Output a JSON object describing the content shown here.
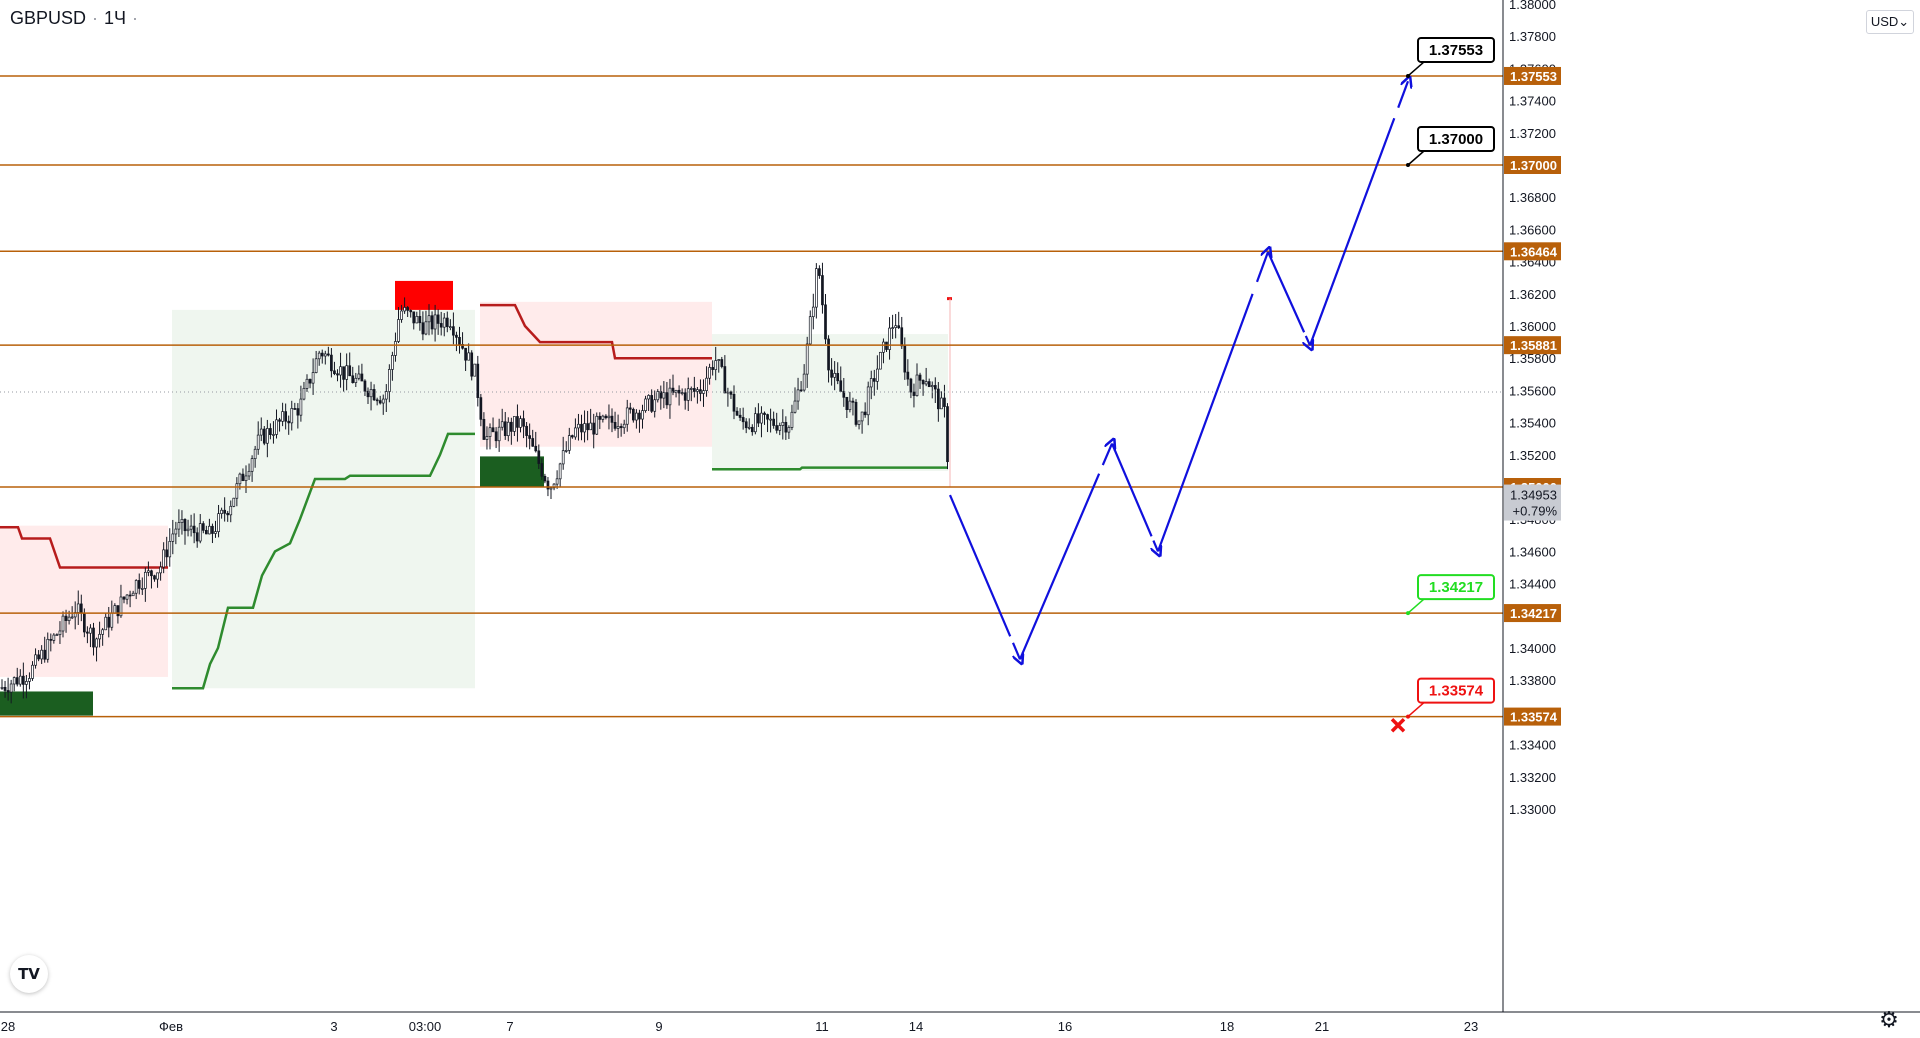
{
  "symbol": "GBPUSD",
  "timeframe": "1Ч",
  "currency": "USD",
  "currency_caret": "⌄",
  "logo_text": "TV",
  "settings_icon": "gear-icon",
  "colors": {
    "level_line": "#b8600a",
    "axis_level_bg": "#b8600a",
    "bull_candle": "#131722",
    "forecast_arrow": "#1010dd",
    "supertrend_up": "#2e8b2e",
    "supertrend_down": "#b71c1c",
    "zone_green": "#1b5e20",
    "zone_red": "#ff0000",
    "label_tp": "#000000",
    "label_green": "#22dd22",
    "label_red": "#ee1111",
    "current_price_bg": "#c8cbd2"
  },
  "chart_data": {
    "type": "candlestick",
    "symbol": "GBPUSD",
    "interval": "1H",
    "y_axis": {
      "range": [
        1.3295,
        1.3805
      ],
      "ticks": [
        "1.33000",
        "1.33200",
        "1.33400",
        "1.33600",
        "1.33800",
        "1.34000",
        "1.34200",
        "1.34400",
        "1.34600",
        "1.34800",
        "1.35000",
        "1.35200",
        "1.35400",
        "1.35600",
        "1.35800",
        "1.36000",
        "1.36200",
        "1.36400",
        "1.36600",
        "1.36800",
        "1.37000",
        "1.37200",
        "1.37400",
        "1.37600",
        "1.37800",
        "1.38000"
      ]
    },
    "x_axis_labels": [
      "28",
      "Фев",
      "3",
      "03:00",
      "7",
      "9",
      "11",
      "14",
      "16",
      "18",
      "21",
      "23"
    ],
    "levels": [
      {
        "price": 1.37553,
        "label": "1.37553"
      },
      {
        "price": 1.37,
        "label": "1.37000"
      },
      {
        "price": 1.36464,
        "label": "1.36464"
      },
      {
        "price": 1.35881,
        "label": "1.35881"
      },
      {
        "price": 1.35,
        "label": "1.35000"
      },
      {
        "price": 1.34217,
        "label": "1.34217"
      },
      {
        "price": 1.33574,
        "label": "1.33574"
      }
    ],
    "current_price": {
      "price": 1.34953,
      "label": "1.34953",
      "change": "+0.79%"
    },
    "targets": [
      {
        "price": 1.37553,
        "label": "1.37553",
        "kind": "take-profit"
      },
      {
        "price": 1.37,
        "label": "1.37000",
        "kind": "take-profit"
      },
      {
        "price": 1.34217,
        "label": "1.34217",
        "kind": "entry"
      },
      {
        "price": 1.33574,
        "label": "1.33574",
        "kind": "stop-loss"
      }
    ],
    "forecast_path": [
      {
        "x": "14",
        "y": 1.3495
      },
      {
        "x": "15",
        "y": 1.3393
      },
      {
        "x": "16.5",
        "y": 1.3527
      },
      {
        "x": "17.5",
        "y": 1.346
      },
      {
        "x": "19",
        "y": 1.3646
      },
      {
        "x": "20",
        "y": 1.3588
      },
      {
        "x": "22",
        "y": 1.3752
      }
    ],
    "grid": false
  }
}
